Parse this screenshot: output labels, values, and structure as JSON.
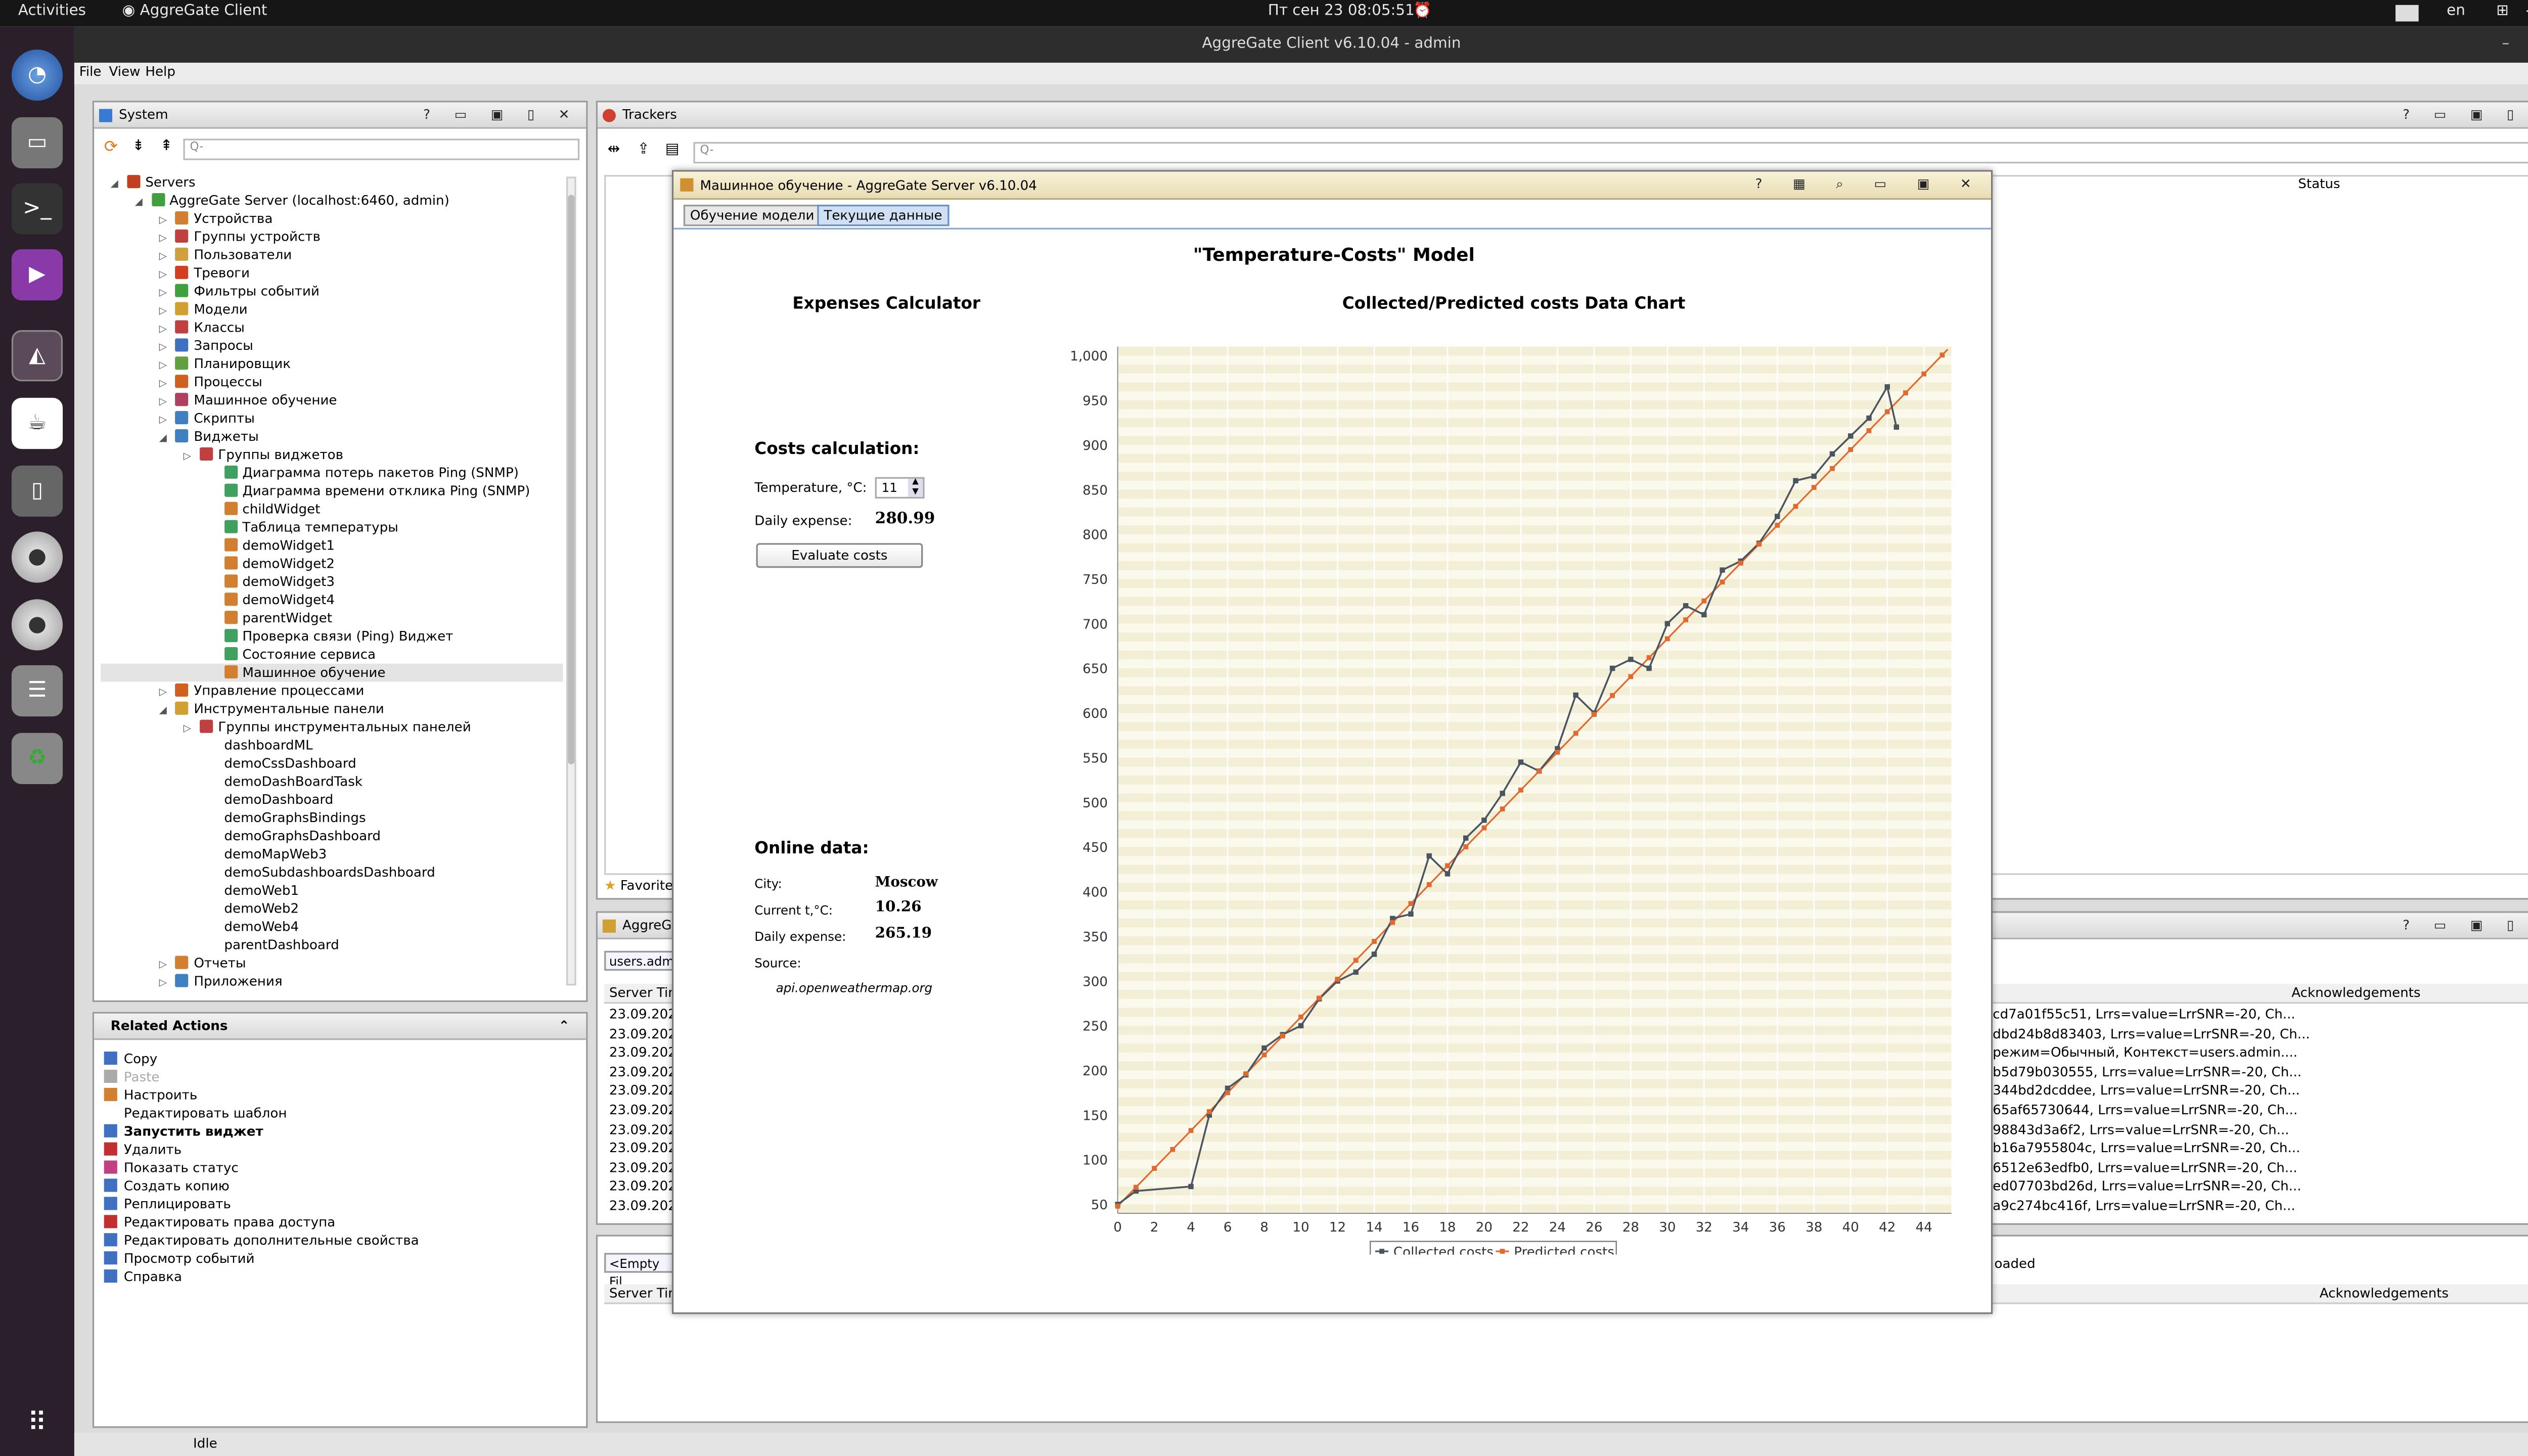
{
  "topbar": {
    "activities": "Activities",
    "app_name": "AggreGate Client",
    "datetime": "Пт сен 23  08:05:51",
    "lang": "en"
  },
  "window": {
    "title": "AggreGate Client v6.10.04 - admin"
  },
  "menu": {
    "file": "File",
    "view": "View",
    "help": "Help"
  },
  "system_panel": {
    "title": "System",
    "search_placeholder": "Q-",
    "tree": [
      {
        "label": "Servers",
        "indent": 0,
        "color": "#c04020"
      },
      {
        "label": "AggreGate Server (localhost:6460, admin)",
        "indent": 1,
        "color": "#40a040"
      },
      {
        "label": "Устройства",
        "indent": 2,
        "color": "#d08030"
      },
      {
        "label": "Группы устройств",
        "indent": 2,
        "color": "#c04040"
      },
      {
        "label": "Пользователи",
        "indent": 2,
        "color": "#d0a040"
      },
      {
        "label": "Тревоги",
        "indent": 2,
        "color": "#d04020"
      },
      {
        "label": "Фильтры событий",
        "indent": 2,
        "color": "#40a040"
      },
      {
        "label": "Модели",
        "indent": 2,
        "color": "#d0a030"
      },
      {
        "label": "Классы",
        "indent": 2,
        "color": "#c04040"
      },
      {
        "label": "Запросы",
        "indent": 2,
        "color": "#4070c0"
      },
      {
        "label": "Планировщик",
        "indent": 2,
        "color": "#60a040"
      },
      {
        "label": "Процессы",
        "indent": 2,
        "color": "#d06020"
      },
      {
        "label": "Машинное обучение",
        "indent": 2,
        "color": "#b04060"
      },
      {
        "label": "Скрипты",
        "indent": 2,
        "color": "#4080c0"
      },
      {
        "label": "Виджеты",
        "indent": 2,
        "color": "#4080c0"
      },
      {
        "label": "Группы виджетов",
        "indent": 3,
        "color": "#c04040"
      },
      {
        "label": "Диаграмма потерь пакетов Ping (SNMP)",
        "indent": 4,
        "color": "#40a060"
      },
      {
        "label": "Диаграмма времени отклика Ping (SNMP)",
        "indent": 4,
        "color": "#40a060"
      },
      {
        "label": "childWidget",
        "indent": 4,
        "color": "#d08030"
      },
      {
        "label": "Таблица температуры",
        "indent": 4,
        "color": "#40a060"
      },
      {
        "label": "demoWidget1",
        "indent": 4,
        "color": "#d08030"
      },
      {
        "label": "demoWidget2",
        "indent": 4,
        "color": "#d08030"
      },
      {
        "label": "demoWidget3",
        "indent": 4,
        "color": "#d08030"
      },
      {
        "label": "demoWidget4",
        "indent": 4,
        "color": "#d08030"
      },
      {
        "label": "parentWidget",
        "indent": 4,
        "color": "#d08030"
      },
      {
        "label": "Проверка связи (Ping) Виджет",
        "indent": 4,
        "color": "#40a060"
      },
      {
        "label": "Состояние сервиса",
        "indent": 4,
        "color": "#40a060"
      },
      {
        "label": "Машинное обучение",
        "indent": 4,
        "color": "#d08030"
      },
      {
        "label": "Управление процессами",
        "indent": 2,
        "color": "#d06020"
      },
      {
        "label": "Инструментальные панели",
        "indent": 2,
        "color": "#d0a030"
      },
      {
        "label": "Группы инструментальных панелей",
        "indent": 3,
        "color": "#c04040"
      },
      {
        "label": "dashboardML",
        "indent": 4,
        "color": ""
      },
      {
        "label": "demoCssDashboard",
        "indent": 4,
        "color": ""
      },
      {
        "label": "demoDashBoardTask",
        "indent": 4,
        "color": ""
      },
      {
        "label": "demoDashboard",
        "indent": 4,
        "color": ""
      },
      {
        "label": "demoGraphsBindings",
        "indent": 4,
        "color": ""
      },
      {
        "label": "demoGraphsDashboard",
        "indent": 4,
        "color": ""
      },
      {
        "label": "demoMapWeb3",
        "indent": 4,
        "color": ""
      },
      {
        "label": "demoSubdashboardsDashboard",
        "indent": 4,
        "color": ""
      },
      {
        "label": "demoWeb1",
        "indent": 4,
        "color": ""
      },
      {
        "label": "demoWeb2",
        "indent": 4,
        "color": ""
      },
      {
        "label": "demoWeb4",
        "indent": 4,
        "color": ""
      },
      {
        "label": "parentDashboard",
        "indent": 4,
        "color": ""
      },
      {
        "label": "Отчеты",
        "indent": 2,
        "color": "#d08030"
      },
      {
        "label": "Приложения",
        "indent": 2,
        "color": "#4080c0"
      }
    ]
  },
  "related_actions": {
    "title": "Related Actions",
    "items": [
      {
        "label": "Copy",
        "color": "#4070c0",
        "bold": false,
        "disabled": false
      },
      {
        "label": "Paste",
        "color": "#aaaaaa",
        "bold": false,
        "disabled": true
      },
      {
        "label": "Настроить",
        "color": "#d08030",
        "bold": false,
        "disabled": false
      },
      {
        "label": "Редактировать шаблон",
        "color": "",
        "bold": false,
        "disabled": false
      },
      {
        "label": "Запустить виджет",
        "color": "#4070c0",
        "bold": true,
        "disabled": false
      },
      {
        "label": "Удалить",
        "color": "#c03030",
        "bold": false,
        "disabled": false
      },
      {
        "label": "Показать статус",
        "color": "#c04080",
        "bold": false,
        "disabled": false
      },
      {
        "label": "Создать копию",
        "color": "#4070c0",
        "bold": false,
        "disabled": false
      },
      {
        "label": "Реплицировать",
        "color": "#4070c0",
        "bold": false,
        "disabled": false
      },
      {
        "label": "Редактировать права доступа",
        "color": "#c03030",
        "bold": false,
        "disabled": false
      },
      {
        "label": "Редактировать дополнительные свойства",
        "color": "#4070c0",
        "bold": false,
        "disabled": false
      },
      {
        "label": "Просмотр событий",
        "color": "#4070c0",
        "bold": false,
        "disabled": false
      },
      {
        "label": "Справка",
        "color": "#4070c0",
        "bold": false,
        "disabled": false
      }
    ]
  },
  "trackers": {
    "title": "Trackers",
    "search_placeholder": "Q-",
    "status_header": "Status",
    "favorites_tab": "Favorite"
  },
  "events_panel": {
    "title": "AggreG",
    "filter_value": "users.adm",
    "col_time": "Server Tim",
    "col_ack": "Acknowledgements",
    "rows": [
      {
        "time": "23.09.202",
        "data": "cd7a01f55c51, Lrrs=value=LrrSNR=-20, Ch..."
      },
      {
        "time": "23.09.202",
        "data": "dbd24b8d83403, Lrrs=value=LrrSNR=-20, Ch..."
      },
      {
        "time": "23.09.202",
        "data": "режим=Обычный, Контекст=users.admin...."
      },
      {
        "time": "23.09.202",
        "data": "b5d79b030555, Lrrs=value=LrrSNR=-20, Ch..."
      },
      {
        "time": "23.09.202",
        "data": "344bd2dcddee, Lrrs=value=LrrSNR=-20, Ch..."
      },
      {
        "time": "23.09.202",
        "data": "65af65730644, Lrrs=value=LrrSNR=-20, Ch..."
      },
      {
        "time": "23.09.202",
        "data": "98843d3a6f2, Lrrs=value=LrrSNR=-20, Ch..."
      },
      {
        "time": "23.09.202",
        "data": "b16a7955804c, Lrrs=value=LrrSNR=-20, Ch..."
      },
      {
        "time": "23.09.202",
        "data": "6512e63edfb0, Lrrs=value=LrrSNR=-20, Ch..."
      },
      {
        "time": "23.09.202",
        "data": "ed07703bd26d, Lrrs=value=LrrSNR=-20, Ch..."
      },
      {
        "time": "23.09.202",
        "data": "a9c274bc416f, Lrrs=value=LrrSNR=-20, Ch..."
      }
    ]
  },
  "bottom_panel": {
    "filter_value": "<Empty Fil",
    "col_time": "Server Tim",
    "col_ack": "Acknowledgements",
    "status_text": "oaded"
  },
  "status_bar": {
    "text": "Idle"
  },
  "modal": {
    "title": "Машинное обучение - AggreGate Server v6.10.04",
    "tabs": [
      "Обучение модели",
      "Текущие данные"
    ],
    "model_title": "\"Temperature-Costs\" Model",
    "calculator_title": "Expenses Calculator",
    "chart_title": "Collected/Predicted costs Data Chart",
    "costs_section": "Costs calculation:",
    "temperature_label": "Temperature, °C:",
    "temperature_value": "11",
    "daily_expense_label": "Daily expense:",
    "daily_expense_value": "280.99",
    "evaluate_button": "Evaluate costs",
    "online_section": "Online data:",
    "city_label": "City:",
    "city_value": "Moscow",
    "current_t_label": "Current t,°C:",
    "current_t_value": "10.26",
    "online_expense_label": "Daily expense:",
    "online_expense_value": "265.19",
    "source_label": "Source:",
    "source_value": "api.openweathermap.org"
  },
  "chart_data": {
    "type": "line",
    "title": "Collected/Predicted costs Data Chart",
    "xlim": [
      0,
      45.5
    ],
    "ylim": [
      40,
      1010
    ],
    "x_ticks": [
      0,
      2,
      4,
      6,
      8,
      10,
      12,
      14,
      16,
      18,
      20,
      22,
      24,
      26,
      28,
      30,
      32,
      34,
      36,
      38,
      40,
      42,
      44
    ],
    "y_ticks": [
      50,
      100,
      150,
      200,
      250,
      300,
      350,
      400,
      450,
      500,
      550,
      600,
      650,
      700,
      750,
      800,
      850,
      900,
      950,
      1000
    ],
    "y_tick_labels": [
      "50",
      "100",
      "150",
      "200",
      "250",
      "300",
      "350",
      "400",
      "450",
      "500",
      "550",
      "600",
      "650",
      "700",
      "750",
      "800",
      "850",
      "900",
      "950",
      "1,000"
    ],
    "legend": [
      "Collected costs",
      "Predicted costs"
    ],
    "legend_position": "bottom",
    "colors": {
      "collected": "#4a5560",
      "predicted": "#e06a30"
    },
    "series": [
      {
        "name": "Predicted costs",
        "x": [
          0,
          45.3
        ],
        "y": [
          48,
          1007
        ]
      },
      {
        "name": "Collected costs",
        "x": [
          0,
          1,
          4,
          5,
          6,
          7,
          8,
          9,
          10,
          11,
          12,
          13,
          14,
          15,
          16,
          17,
          18,
          19,
          20,
          21,
          22,
          23,
          24,
          25,
          26,
          27,
          28,
          29,
          30,
          31,
          32,
          33,
          34,
          35,
          36,
          37,
          38,
          39,
          40,
          41,
          42,
          42.5
        ],
        "y": [
          50,
          65,
          70,
          150,
          180,
          195,
          225,
          240,
          250,
          280,
          300,
          310,
          330,
          370,
          375,
          440,
          420,
          460,
          480,
          510,
          545,
          535,
          560,
          620,
          600,
          650,
          660,
          650,
          700,
          720,
          710,
          760,
          770,
          790,
          820,
          860,
          865,
          890,
          910,
          930,
          965,
          920
        ]
      }
    ]
  }
}
